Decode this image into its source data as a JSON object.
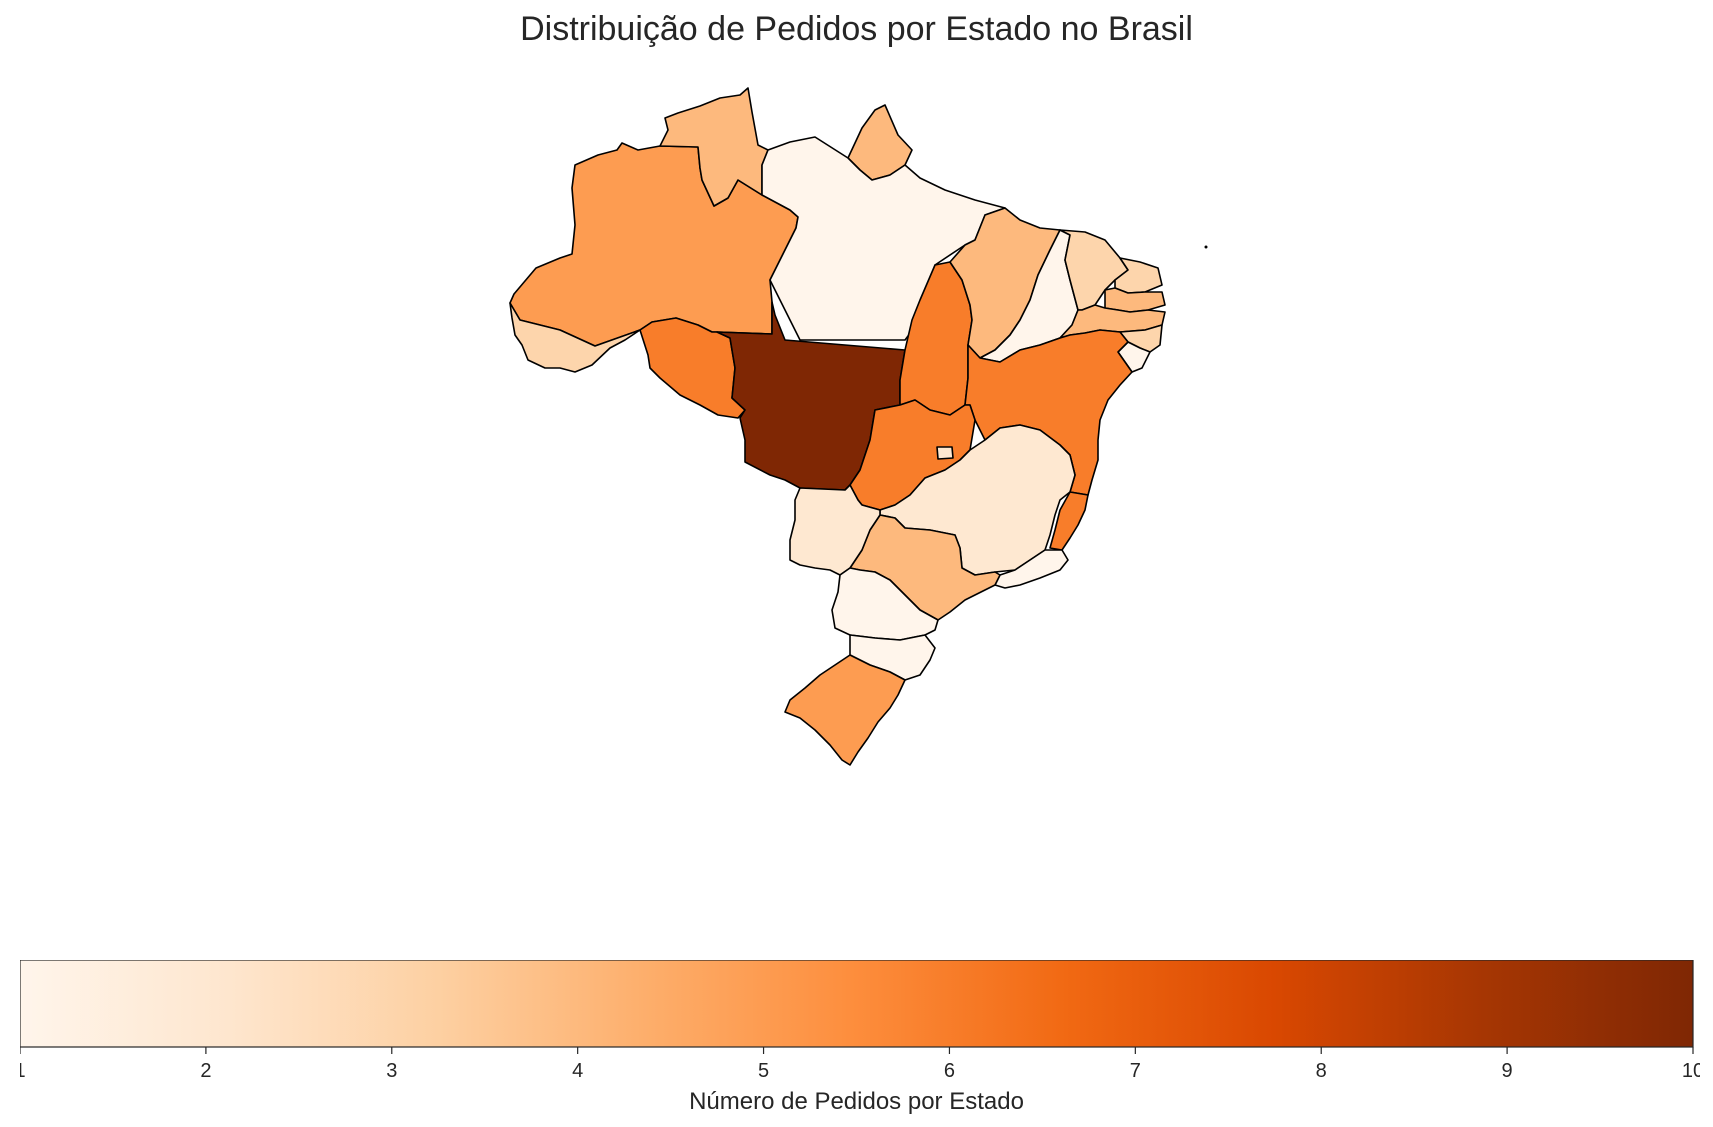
{
  "title": "Distribuição de Pedidos por Estado no Brasil",
  "colorbar": {
    "label": "Número de Pedidos por Estado",
    "min": 1,
    "max": 10,
    "ticks": [
      "1",
      "2",
      "3",
      "4",
      "5",
      "6",
      "7",
      "8",
      "9",
      "10"
    ],
    "colors": [
      "#fff5eb",
      "#fee6ce",
      "#fdd0a2",
      "#fdae6b",
      "#fd8d3c",
      "#f16913",
      "#d94801",
      "#a63603",
      "#7f2704"
    ]
  },
  "chart_data": {
    "type": "choropleth",
    "title": "Distribuição de Pedidos por Estado no Brasil",
    "colorbar_label": "Número de Pedidos por Estado",
    "range": [
      1,
      10
    ],
    "colormap": "Oranges",
    "regions": [
      {
        "name": "AM",
        "value": 5
      },
      {
        "name": "RR",
        "value": 4
      },
      {
        "name": "AP",
        "value": 4
      },
      {
        "name": "PA",
        "value": 1
      },
      {
        "name": "AC",
        "value": 3
      },
      {
        "name": "RO",
        "value": 6
      },
      {
        "name": "MT",
        "value": 10
      },
      {
        "name": "TO",
        "value": 6
      },
      {
        "name": "MA",
        "value": 4
      },
      {
        "name": "PI",
        "value": 1
      },
      {
        "name": "CE",
        "value": 3
      },
      {
        "name": "RN",
        "value": 3
      },
      {
        "name": "PB",
        "value": 4
      },
      {
        "name": "PE",
        "value": 4
      },
      {
        "name": "AL",
        "value": 3
      },
      {
        "name": "SE",
        "value": 1
      },
      {
        "name": "BA",
        "value": 6
      },
      {
        "name": "GO",
        "value": 6
      },
      {
        "name": "DF",
        "value": 2
      },
      {
        "name": "MG",
        "value": 2
      },
      {
        "name": "ES",
        "value": 6
      },
      {
        "name": "RJ",
        "value": 1
      },
      {
        "name": "SP",
        "value": 4
      },
      {
        "name": "MS",
        "value": 2
      },
      {
        "name": "PR",
        "value": 1
      },
      {
        "name": "SC",
        "value": 1
      },
      {
        "name": "RS",
        "value": 5
      }
    ]
  }
}
